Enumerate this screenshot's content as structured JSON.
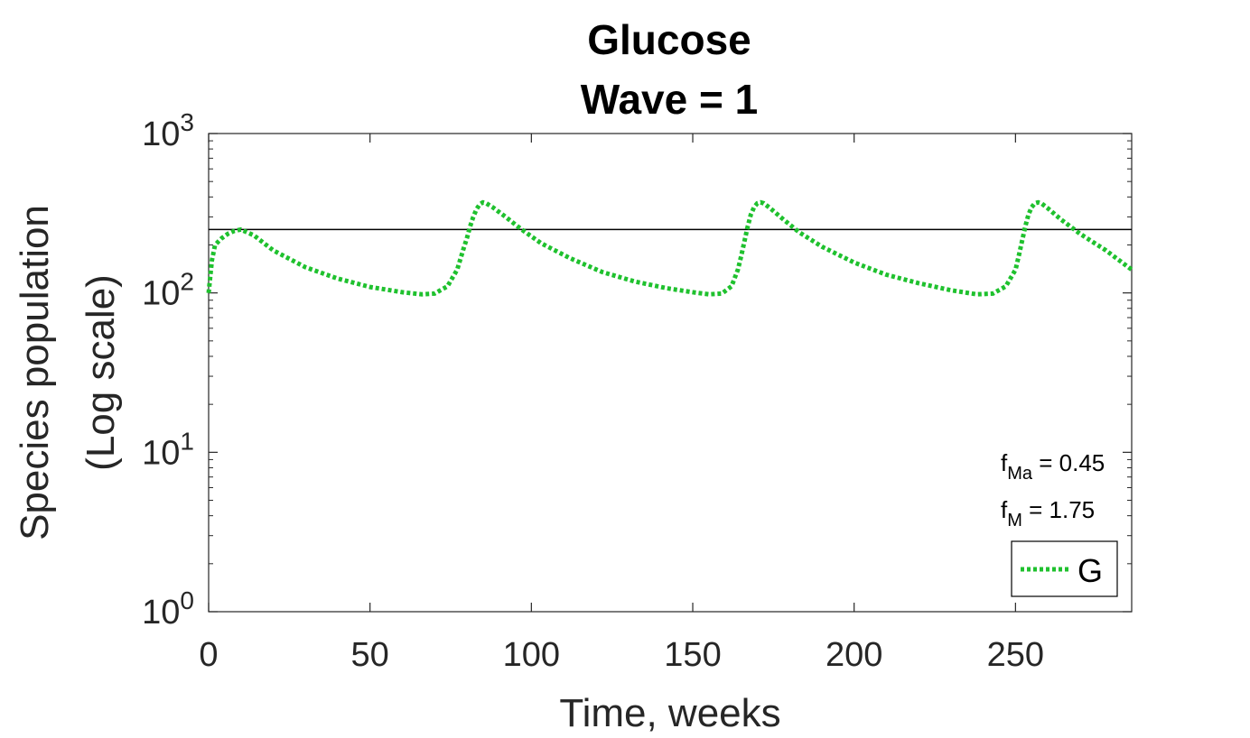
{
  "chart_data": {
    "type": "line",
    "title": "Glucose",
    "subtitle": "Wave = 1",
    "xlabel": "Time, weeks",
    "ylabel_line1": "Species population",
    "ylabel_line2": "(Log scale)",
    "xlim": [
      0,
      286
    ],
    "ylim": [
      1,
      1000
    ],
    "yscale": "log",
    "xticks": [
      0,
      50,
      100,
      150,
      200,
      250
    ],
    "xtick_labels": [
      "0",
      "50",
      "100",
      "150",
      "200",
      "250"
    ],
    "yticks": [
      1,
      10,
      100,
      1000
    ],
    "ytick_base": "10",
    "ytick_exponents": [
      "0",
      "1",
      "2",
      "3"
    ],
    "grid": false,
    "legend_position": "bottom-right",
    "threshold_line": {
      "y": 250,
      "color": "#000000"
    },
    "annotations": [
      {
        "base": "f",
        "sub": "Ma",
        "rest": " = 0.45"
      },
      {
        "base": "f",
        "sub": "M",
        "rest": " = 1.75"
      }
    ],
    "series": [
      {
        "name": "G",
        "color": "#1fc12e",
        "style": "dotted",
        "x": [
          0,
          1,
          2,
          4,
          6,
          8,
          10,
          14,
          20,
          30,
          40,
          50,
          60,
          66,
          70,
          74,
          77,
          79,
          80,
          81,
          82,
          83,
          84,
          85,
          86,
          88,
          92,
          97,
          103,
          112,
          122,
          132,
          142,
          150,
          155,
          159,
          162,
          164,
          165,
          166,
          167,
          168,
          169,
          170,
          171,
          172,
          174,
          178,
          183,
          190,
          200,
          210,
          220,
          230,
          238,
          243,
          247,
          250,
          251,
          252,
          253,
          254,
          255,
          256,
          257,
          258,
          260,
          264,
          270,
          278,
          286
        ],
        "y": [
          100,
          160,
          200,
          220,
          235,
          245,
          250,
          230,
          185,
          145,
          123,
          109,
          101,
          98,
          99,
          110,
          140,
          190,
          220,
          260,
          300,
          335,
          360,
          370,
          365,
          345,
          300,
          250,
          205,
          165,
          135,
          118,
          107,
          101,
          98,
          99,
          110,
          140,
          170,
          210,
          260,
          310,
          345,
          365,
          370,
          365,
          340,
          290,
          240,
          195,
          155,
          130,
          115,
          104,
          98,
          99,
          110,
          140,
          170,
          210,
          260,
          310,
          345,
          365,
          370,
          365,
          340,
          290,
          235,
          185,
          140
        ]
      }
    ]
  }
}
